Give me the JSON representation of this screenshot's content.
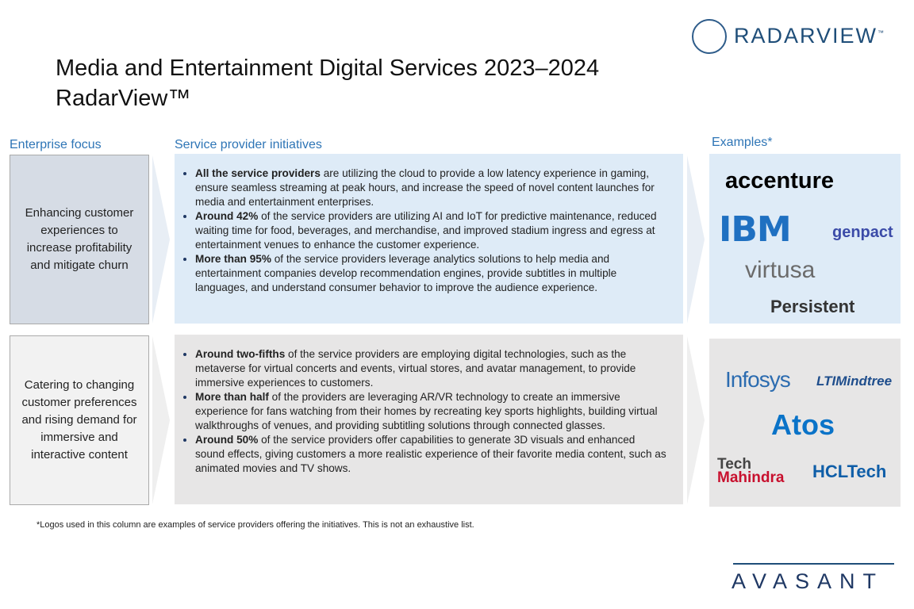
{
  "header": {
    "brand": "RADARVIEW",
    "brand_mark": "™",
    "title_line1": "Media and Entertainment Digital Services 2023–2024",
    "title_line2": "RadarView™"
  },
  "columns": {
    "focus": "Enterprise focus",
    "initiatives": "Service provider initiatives",
    "examples": "Examples*"
  },
  "rows": [
    {
      "focus": "Enhancing customer experiences to increase profitability and mitigate churn",
      "initiatives": [
        {
          "lead": "All the service providers",
          "text": " are utilizing the cloud to provide a low latency experience in gaming, ensure seamless streaming at peak hours, and increase the speed of novel content launches for media and entertainment enterprises."
        },
        {
          "lead": "Around 42%",
          "text": " of the service providers are utilizing AI and IoT for predictive maintenance, reduced waiting time for food, beverages, and merchandise, and improved stadium ingress and egress at entertainment venues to enhance the customer experience."
        },
        {
          "lead": "More than 95%",
          "text": " of the service providers leverage analytics solutions to help media and entertainment companies develop recommendation engines, provide subtitles in multiple languages, and understand consumer behavior to improve the audience experience."
        }
      ],
      "examples": [
        "accenture",
        "IBM",
        "genpact",
        "virtusa",
        "Persistent"
      ]
    },
    {
      "focus": "Catering to changing customer preferences and rising demand for immersive and interactive content",
      "initiatives": [
        {
          "lead": "Around two-fifths",
          "text": " of the service providers are employing digital technologies, such as the metaverse for virtual concerts and events, virtual stores, and avatar management, to provide immersive experiences to customers."
        },
        {
          "lead": "More than half",
          "text": " of the providers are leveraging AR/VR technology to create an immersive experience for fans watching from their homes by recreating key sports highlights, building virtual walkthroughs of venues, and providing subtitling solutions through connected glasses."
        },
        {
          "lead": "Around 50%",
          "text": " of the service providers offer capabilities to generate 3D visuals and enhanced sound effects, giving customers a more realistic experience of their favorite media content, such as animated movies and TV shows."
        }
      ],
      "examples": [
        "Infosys",
        "LTIMindtree",
        "Atos",
        "Tech",
        "Mahindra",
        "HCLTech"
      ]
    }
  ],
  "footnote": "*Logos used in this column are examples of service providers offering the initiatives. This is not an exhaustive list.",
  "footer": {
    "brand": "AVASANT"
  }
}
